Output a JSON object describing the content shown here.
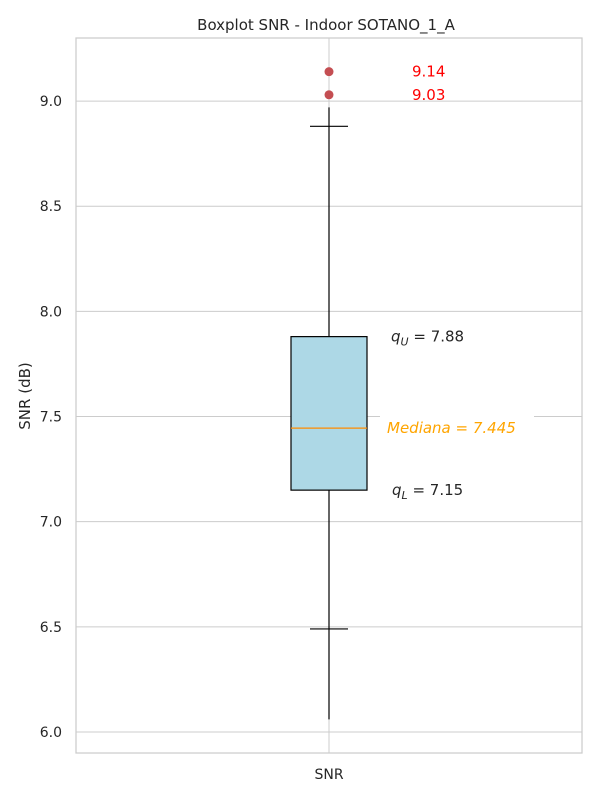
{
  "chart_data": {
    "type": "boxplot",
    "title": "Boxplot SNR - Indoor SOTANO_1_A",
    "ylabel": "SNR (dB)",
    "categories": [
      "SNR"
    ],
    "ylim": [
      5.9,
      9.3
    ],
    "yticks": [
      "6.0",
      "6.5",
      "7.0",
      "7.5",
      "8.0",
      "8.5",
      "9.0"
    ],
    "grid": true,
    "box": {
      "q1": 7.15,
      "median": 7.445,
      "q3": 7.88,
      "whisker_low": 6.06,
      "whisker_high": 8.97,
      "cap_low": 6.49,
      "cap_high": 8.88
    },
    "outliers": [
      {
        "value": 9.14,
        "label": "9.14"
      },
      {
        "value": 9.03,
        "label": "9.03"
      }
    ],
    "annotations": {
      "upper": {
        "prefix": "q",
        "sub": "U",
        "text": " = 7.88",
        "value": 7.88
      },
      "median": {
        "text": "Mediana = 7.445",
        "value": 7.445
      },
      "lower": {
        "prefix": "q",
        "sub": "L",
        "text": " = 7.15",
        "value": 7.15
      }
    },
    "colors": {
      "box_fill": "#add8e6",
      "median_line": "#ff8c00",
      "median_text": "#ffa500",
      "outlier": "#c44e52",
      "outlier_text": "#ff0000",
      "grid": "#cccccc"
    }
  }
}
